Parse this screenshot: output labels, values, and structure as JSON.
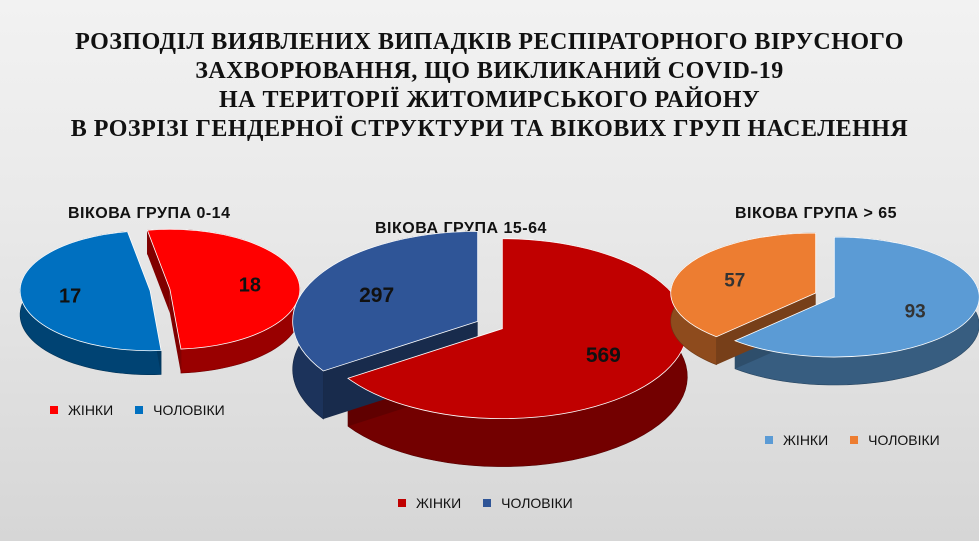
{
  "title": {
    "lines": [
      "РОЗПОДІЛ ВИЯВЛЕНИХ ВИПАДКІВ РЕСПІРАТОРНОГО ВІРУСНОГО",
      "ЗАХВОРЮВАННЯ, ЩО ВИКЛИКАНИЙ COVID-19",
      "НА ТЕРИТОРІЇ ЖИТОМИРСЬКОГО РАЙОНУ",
      "В РОЗРІЗІ ГЕНДЕРНОЇ СТРУКТУРИ ТА ВІКОВИХ ГРУП НАСЕЛЕННЯ"
    ]
  },
  "chart_data": [
    {
      "type": "pie",
      "title": "ВІКОВА ГРУПА 0-14",
      "categories": [
        "ЖІНКИ",
        "ЧОЛОВІКИ"
      ],
      "values": [
        18,
        17
      ],
      "colors": [
        "#ff0000",
        "#0070c0"
      ],
      "legend": "bottom"
    },
    {
      "type": "pie",
      "title": "ВІКОВА ГРУПА 15-64",
      "categories": [
        "ЖІНКИ",
        "ЧОЛОВІКИ"
      ],
      "values": [
        569,
        297
      ],
      "colors": [
        "#c00000",
        "#2f5597"
      ],
      "legend": "bottom"
    },
    {
      "type": "pie",
      "title": "ВІКОВА ГРУПА > 65",
      "categories": [
        "ЖІНКИ",
        "ЧОЛОВІКИ"
      ],
      "values": [
        93,
        57
      ],
      "colors": [
        "#5b9bd5",
        "#ed7d31"
      ],
      "legend": "bottom"
    }
  ]
}
